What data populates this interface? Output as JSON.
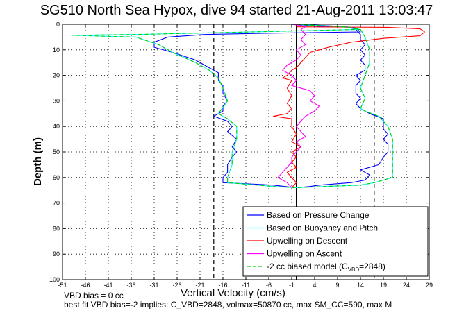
{
  "figure": {
    "title": "SG510 North Sea Hypox, dive 94 started 21-Aug-2011 13:03:47",
    "xlabel": "Vertical Velocity (cm/s)",
    "ylabel": "Depth (m)",
    "note_vbd_bias": "VBD bias = 0 cc",
    "note_best_fit": "best fit VBD bias=-2 implies: C_VBD=2848, volmax=50870 cc, max SM_CC=590, max M"
  },
  "chart_data": {
    "type": "line",
    "title": "SG510 North Sea Hypox, dive 94 started 21-Aug-2011 13:03:47",
    "xlabel": "Vertical Velocity (cm/s)",
    "ylabel": "Depth (m)",
    "xlim": [
      -51,
      29
    ],
    "ylim": [
      0,
      100
    ],
    "y_reversed": true,
    "grid": true,
    "legend_placement": "bottom-right",
    "x_ticks": [
      "-51",
      "-46",
      "-41",
      "-36",
      "-31",
      "-26",
      "-21",
      "-16",
      "-11",
      "-6",
      "-1",
      "4",
      "9",
      "14",
      "19",
      "24",
      "29"
    ],
    "y_ticks": [
      "0",
      "10",
      "20",
      "30",
      "40",
      "50",
      "60",
      "70",
      "80",
      "90",
      "100"
    ],
    "vertical_lines": [
      {
        "x": -18,
        "style": "dashed",
        "color": "#000000"
      },
      {
        "x": 0,
        "style": "solid",
        "color": "#000000"
      },
      {
        "x": 17,
        "style": "dashed",
        "color": "#000000"
      }
    ],
    "series": [
      {
        "name": "Based on Pressure Change",
        "color": "#0000ff",
        "points": [
          [
            -1,
            0
          ],
          [
            3,
            0.5
          ],
          [
            6,
            1
          ],
          [
            11,
            1
          ],
          [
            13,
            1.5
          ],
          [
            14,
            3
          ],
          [
            -7,
            3.5
          ],
          [
            -20,
            4
          ],
          [
            -28,
            5
          ],
          [
            -31,
            7
          ],
          [
            -31,
            9
          ],
          [
            -27,
            11
          ],
          [
            -22,
            14
          ],
          [
            -19,
            17
          ],
          [
            -17,
            19
          ],
          [
            -17,
            22
          ],
          [
            -16,
            24
          ],
          [
            -16,
            27
          ],
          [
            -15,
            30
          ],
          [
            -16,
            32
          ],
          [
            -16,
            34
          ],
          [
            -18,
            36
          ],
          [
            -15,
            38
          ],
          [
            -14,
            40
          ],
          [
            -15,
            42
          ],
          [
            -13,
            45
          ],
          [
            -14,
            48
          ],
          [
            -13,
            50
          ],
          [
            -14,
            52
          ],
          [
            -15,
            55
          ],
          [
            -15,
            58
          ],
          [
            -16,
            60
          ],
          [
            -16,
            62
          ],
          [
            -5,
            63
          ],
          [
            0,
            64
          ],
          [
            3,
            63.5
          ],
          [
            5,
            63
          ],
          [
            12,
            62
          ],
          [
            15,
            61
          ],
          [
            16,
            59
          ],
          [
            14,
            57
          ],
          [
            18,
            55
          ],
          [
            19,
            52
          ],
          [
            20,
            50
          ],
          [
            20,
            47
          ],
          [
            19,
            45
          ],
          [
            20,
            43
          ],
          [
            19,
            41
          ],
          [
            19,
            39
          ],
          [
            19,
            37
          ],
          [
            16,
            35
          ],
          [
            14,
            33
          ],
          [
            13,
            31
          ],
          [
            14,
            29
          ],
          [
            13,
            27
          ],
          [
            13,
            24
          ],
          [
            14,
            22
          ],
          [
            13,
            20
          ],
          [
            15,
            18
          ],
          [
            15,
            16
          ],
          [
            14,
            14
          ],
          [
            15,
            12
          ],
          [
            14,
            10
          ],
          [
            15,
            8
          ],
          [
            14,
            6
          ],
          [
            14,
            4
          ],
          [
            13,
            2
          ],
          [
            11,
            1
          ],
          [
            6,
            0.5
          ],
          [
            1,
            0
          ]
        ]
      },
      {
        "name": "Based on Buoyancy and Pitch",
        "color": "#00ffff",
        "points": [
          [
            -1,
            0
          ],
          [
            5,
            0.5
          ],
          [
            11,
            1
          ],
          [
            14,
            2
          ],
          [
            -10,
            3
          ],
          [
            -35,
            4
          ],
          [
            -49,
            4.3
          ],
          [
            -35,
            5
          ],
          [
            -30,
            8
          ],
          [
            -27,
            11
          ],
          [
            -22,
            15
          ],
          [
            -19,
            18
          ],
          [
            -17,
            21
          ],
          [
            -16,
            25
          ],
          [
            -15,
            30
          ],
          [
            -17,
            35
          ],
          [
            -15,
            37
          ],
          [
            -13,
            40
          ],
          [
            -13,
            45
          ],
          [
            -14,
            50
          ],
          [
            -14,
            55
          ],
          [
            -15,
            60
          ],
          [
            -15,
            62
          ],
          [
            -5,
            63.5
          ],
          [
            0,
            64
          ],
          [
            6,
            63.5
          ],
          [
            14,
            63
          ],
          [
            17,
            62
          ],
          [
            19,
            61
          ],
          [
            21,
            60
          ],
          [
            21,
            55
          ],
          [
            21,
            50
          ],
          [
            21,
            45
          ],
          [
            20,
            40
          ],
          [
            18,
            36
          ],
          [
            15,
            34
          ],
          [
            14,
            33
          ],
          [
            15,
            29
          ],
          [
            14,
            25
          ],
          [
            15,
            20
          ],
          [
            16,
            15
          ],
          [
            16,
            10
          ],
          [
            15,
            5
          ],
          [
            14,
            2
          ],
          [
            10,
            1
          ],
          [
            5,
            0.5
          ],
          [
            0,
            0
          ]
        ]
      },
      {
        "name": "Upwelling on Descent",
        "color": "#ff0000",
        "points": [
          [
            0,
            1
          ],
          [
            20,
            1.2
          ],
          [
            27,
            1.8
          ],
          [
            28,
            3
          ],
          [
            27,
            4.5
          ],
          [
            19,
            5.5
          ],
          [
            12,
            7
          ],
          [
            7,
            9
          ],
          [
            5,
            10
          ],
          [
            3,
            11
          ],
          [
            2,
            13
          ],
          [
            1,
            15
          ],
          [
            0,
            17
          ],
          [
            -1,
            18
          ],
          [
            -2,
            20
          ],
          [
            -3,
            21
          ],
          [
            -1,
            22
          ],
          [
            -2,
            25
          ],
          [
            -1,
            28
          ],
          [
            -2,
            31
          ],
          [
            -1,
            33
          ],
          [
            -2,
            35
          ],
          [
            -5,
            36
          ],
          [
            -1,
            37
          ],
          [
            -1,
            40
          ],
          [
            0,
            43
          ],
          [
            -1,
            46
          ],
          [
            1,
            48
          ],
          [
            -1,
            50
          ],
          [
            0,
            52
          ],
          [
            -1,
            54
          ],
          [
            0,
            56
          ],
          [
            -2,
            58
          ],
          [
            -1,
            60
          ],
          [
            0,
            62
          ],
          [
            -1,
            64
          ]
        ]
      },
      {
        "name": "Upwelling on Ascent",
        "color": "#ff00ff",
        "points": [
          [
            -1,
            0
          ],
          [
            1,
            0.5
          ],
          [
            2,
            1
          ],
          [
            1,
            2
          ],
          [
            2,
            4
          ],
          [
            1,
            6
          ],
          [
            2,
            8
          ],
          [
            0,
            10
          ],
          [
            1,
            12
          ],
          [
            0,
            14
          ],
          [
            -2,
            16
          ],
          [
            -3,
            18
          ],
          [
            -1,
            20
          ],
          [
            0,
            22
          ],
          [
            -1,
            24
          ],
          [
            3,
            26
          ],
          [
            4,
            28
          ],
          [
            3,
            30
          ],
          [
            5,
            32
          ],
          [
            4,
            34
          ],
          [
            2,
            36
          ],
          [
            1,
            38
          ],
          [
            0,
            40
          ],
          [
            1,
            42
          ],
          [
            2,
            44
          ],
          [
            0,
            46
          ],
          [
            1,
            48
          ],
          [
            0,
            50
          ],
          [
            -1,
            52
          ],
          [
            -1,
            54
          ],
          [
            -2,
            56
          ],
          [
            -3,
            58
          ],
          [
            -4,
            60
          ],
          [
            -2,
            62
          ],
          [
            -1,
            64
          ]
        ]
      },
      {
        "name": "-2 cc biased model (C_VBD=2848)",
        "color": "#00cc00",
        "dashed": true,
        "points": [
          [
            -1,
            0
          ],
          [
            5,
            0.5
          ],
          [
            11,
            1
          ],
          [
            14,
            2
          ],
          [
            -10,
            3
          ],
          [
            -35,
            4
          ],
          [
            -49,
            4.3
          ],
          [
            -35,
            5
          ],
          [
            -30,
            8
          ],
          [
            -27,
            11
          ],
          [
            -22,
            15
          ],
          [
            -19,
            18
          ],
          [
            -17,
            21
          ],
          [
            -16,
            25
          ],
          [
            -15,
            30
          ],
          [
            -17,
            35
          ],
          [
            -15,
            37
          ],
          [
            -13,
            40
          ],
          [
            -13,
            45
          ],
          [
            -14,
            50
          ],
          [
            -14,
            55
          ],
          [
            -15,
            60
          ],
          [
            -15,
            62
          ],
          [
            -5,
            63.5
          ],
          [
            0,
            64
          ],
          [
            6,
            63.5
          ],
          [
            14,
            63
          ],
          [
            17,
            62
          ],
          [
            19,
            61
          ],
          [
            21,
            60
          ],
          [
            21,
            55
          ],
          [
            21,
            50
          ],
          [
            21,
            45
          ],
          [
            20,
            40
          ],
          [
            18,
            36
          ],
          [
            15,
            34
          ],
          [
            14,
            33
          ],
          [
            15,
            29
          ],
          [
            14,
            25
          ],
          [
            15,
            20
          ],
          [
            16,
            15
          ],
          [
            16,
            10
          ],
          [
            15,
            5
          ],
          [
            14,
            2
          ],
          [
            10,
            1
          ],
          [
            5,
            0.5
          ],
          [
            0,
            0
          ]
        ]
      }
    ],
    "legend": {
      "entries": [
        {
          "label": "Based on Pressure Change",
          "color": "#0000ff",
          "style": "solid"
        },
        {
          "label": "Based on Buoyancy and Pitch",
          "color": "#00ffff",
          "style": "solid"
        },
        {
          "label": "Upwelling on Descent",
          "color": "#ff0000",
          "style": "solid"
        },
        {
          "label": "Upwelling on Ascent",
          "color": "#ff00ff",
          "style": "solid"
        },
        {
          "label_prefix": "-2 cc biased model (C",
          "label_sub": "VBD",
          "label_suffix": "=2848)",
          "color": "#00cc00",
          "style": "dashed"
        }
      ]
    }
  }
}
